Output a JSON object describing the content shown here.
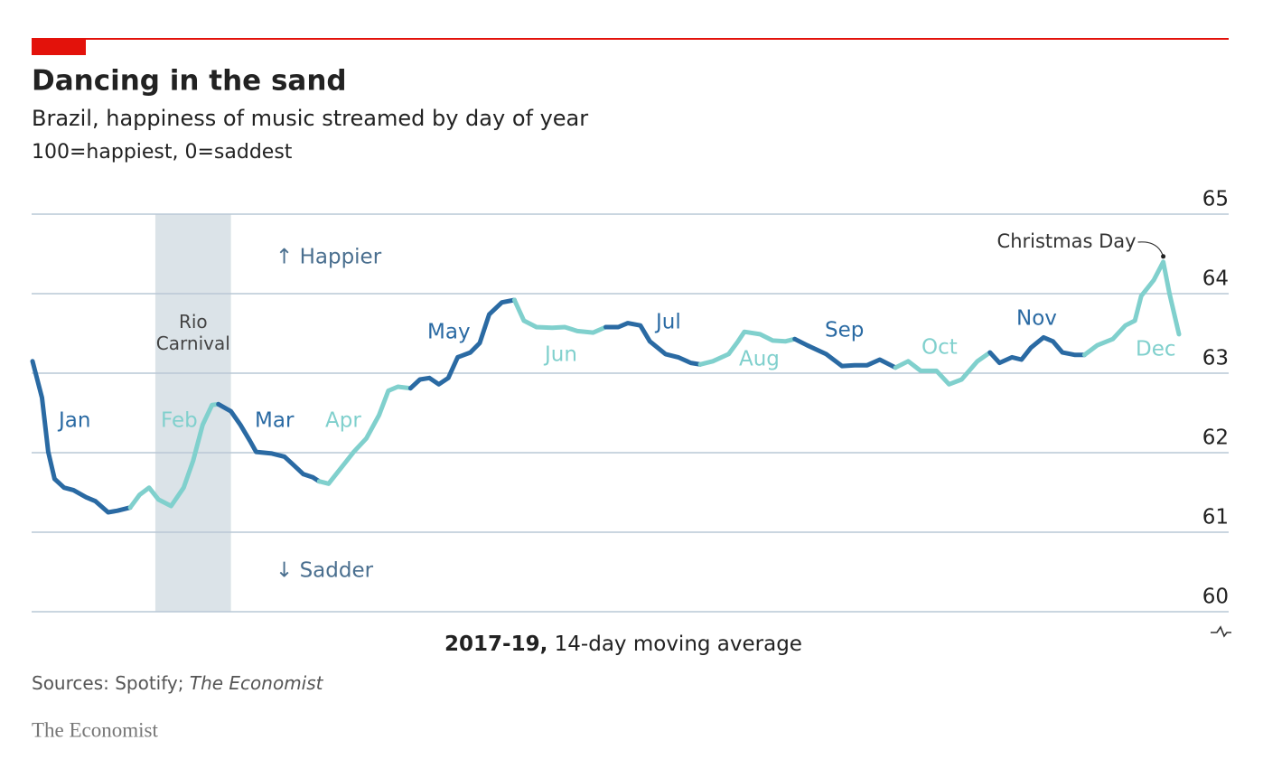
{
  "chart_data": {
    "type": "line",
    "title": "Dancing in the sand",
    "subtitle": "Brazil, happiness of music streamed by day of year",
    "scale_note": "100=happiest, 0=saddest",
    "up_label": "↑ Happier",
    "down_label": "↓ Sadder",
    "note_bold": "2017-19,",
    "note": "14-day moving average",
    "source": "Sources: Spotify;",
    "source_italic": "The Economist",
    "brand": "The Economist",
    "shaded_range": {
      "label": "Rio Carnival",
      "x": [
        40,
        64
      ],
      "color": "#dbe3e8"
    },
    "peak_annotation": "Christmas Day",
    "xlim": [
      1,
      365
    ],
    "ylim": [
      60,
      65
    ],
    "yticks": [
      60,
      61,
      62,
      63,
      64,
      65
    ],
    "grid": true,
    "series": [
      {
        "name": "Jan",
        "color": "#2a6aa3",
        "x": [
          1,
          4,
          6,
          8,
          11,
          14,
          18,
          21,
          25,
          28,
          32
        ],
        "values": [
          63.15,
          62.69,
          62.01,
          61.67,
          61.56,
          61.53,
          61.44,
          61.39,
          61.25,
          61.27,
          61.31
        ]
      },
      {
        "name": "Feb",
        "color": "#80d0cd",
        "x": [
          32,
          35,
          38,
          41,
          45,
          49,
          52,
          55,
          58,
          60
        ],
        "values": [
          61.31,
          61.47,
          61.56,
          61.41,
          61.33,
          61.56,
          61.9,
          62.35,
          62.6,
          62.61
        ]
      },
      {
        "name": "Mar",
        "color": "#2a6aa3",
        "x": [
          60,
          64,
          67,
          70,
          72,
          77,
          81,
          84,
          87,
          90,
          92
        ],
        "values": [
          62.61,
          62.52,
          62.35,
          62.15,
          62.01,
          61.99,
          61.95,
          61.84,
          61.73,
          61.69,
          61.64
        ]
      },
      {
        "name": "Apr",
        "color": "#80d0cd",
        "x": [
          92,
          95,
          98,
          103,
          107,
          111,
          114,
          117,
          121
        ],
        "values": [
          61.64,
          61.61,
          61.76,
          62.01,
          62.18,
          62.47,
          62.78,
          62.83,
          62.81
        ]
      },
      {
        "name": "May",
        "color": "#2a6aa3",
        "x": [
          121,
          124,
          127,
          130,
          133,
          136,
          140,
          143,
          146,
          150,
          154
        ],
        "values": [
          62.81,
          62.92,
          62.94,
          62.86,
          62.94,
          63.2,
          63.26,
          63.38,
          63.74,
          63.89,
          63.92
        ]
      },
      {
        "name": "Jun",
        "color": "#80d0cd",
        "x": [
          154,
          157,
          161,
          166,
          170,
          174,
          179,
          183
        ],
        "values": [
          63.92,
          63.66,
          63.58,
          63.57,
          63.58,
          63.53,
          63.51,
          63.58
        ]
      },
      {
        "name": "Jul",
        "color": "#2a6aa3",
        "x": [
          183,
          187,
          190,
          194,
          197,
          202,
          206,
          210,
          213
        ],
        "values": [
          63.58,
          63.58,
          63.63,
          63.6,
          63.4,
          63.24,
          63.2,
          63.13,
          63.11
        ]
      },
      {
        "name": "Aug",
        "color": "#80d0cd",
        "x": [
          213,
          217,
          222,
          225,
          227,
          232,
          236,
          240,
          243
        ],
        "values": [
          63.11,
          63.15,
          63.24,
          63.4,
          63.52,
          63.49,
          63.41,
          63.4,
          63.43
        ]
      },
      {
        "name": "Sep",
        "color": "#2a6aa3",
        "x": [
          243,
          247,
          253,
          258,
          262,
          266,
          270,
          275
        ],
        "values": [
          63.43,
          63.35,
          63.24,
          63.09,
          63.1,
          63.1,
          63.17,
          63.07
        ]
      },
      {
        "name": "Oct",
        "color": "#80d0cd",
        "x": [
          275,
          279,
          283,
          288,
          292,
          296,
          301,
          305
        ],
        "values": [
          63.07,
          63.15,
          63.03,
          63.03,
          62.86,
          62.92,
          63.15,
          63.26
        ]
      },
      {
        "name": "Nov",
        "color": "#2a6aa3",
        "x": [
          305,
          308,
          312,
          315,
          318,
          322,
          325,
          328,
          332,
          335
        ],
        "values": [
          63.26,
          63.13,
          63.2,
          63.17,
          63.32,
          63.45,
          63.4,
          63.26,
          63.23,
          63.23
        ]
      },
      {
        "name": "Dec",
        "color": "#80d0cd",
        "x": [
          335,
          339,
          344,
          348,
          351,
          353,
          357,
          360,
          362,
          365
        ],
        "values": [
          63.23,
          63.35,
          63.43,
          63.6,
          63.66,
          63.97,
          64.17,
          64.4,
          64.0,
          63.49
        ]
      }
    ]
  }
}
